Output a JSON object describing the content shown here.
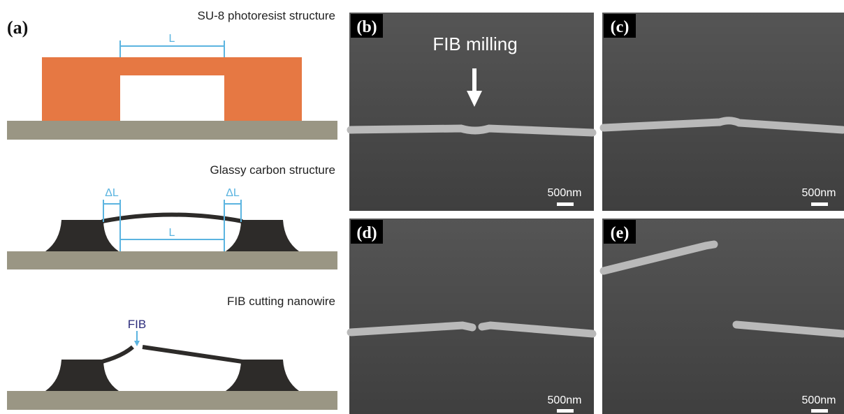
{
  "panel_a": {
    "label": "(a)",
    "steps": [
      {
        "title": "SU-8 photoresist structure",
        "length_label": "L"
      },
      {
        "title": "Glassy carbon structure",
        "shrink_labels": [
          "ΔL",
          "ΔL"
        ],
        "length_label": "L"
      },
      {
        "title": "FIB cutting nanowire",
        "beam_label": "FIB"
      }
    ]
  },
  "sem_panels": [
    {
      "label": "(b)",
      "annotation": "FIB milling",
      "scale_bar": "500nm"
    },
    {
      "label": "(c)",
      "scale_bar": "500nm"
    },
    {
      "label": "(d)",
      "scale_bar": "500nm"
    },
    {
      "label": "(e)",
      "scale_bar": "500nm"
    }
  ]
}
